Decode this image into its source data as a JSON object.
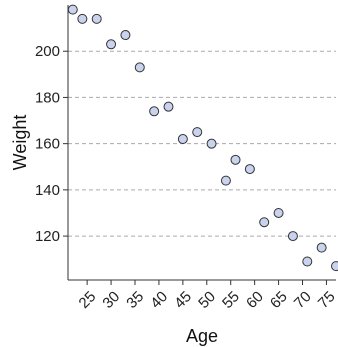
{
  "chart_data": {
    "type": "scatter",
    "title": "",
    "xlabel": "Age",
    "ylabel": "Weight",
    "xlim": [
      21,
      77
    ],
    "ylim": [
      101,
      220
    ],
    "xticks": [
      25,
      30,
      35,
      40,
      45,
      50,
      55,
      60,
      65,
      70,
      75
    ],
    "yticks": [
      120,
      140,
      160,
      180,
      200
    ],
    "grid": "horizontal-dashed",
    "colors": {
      "point_fill": "#c9d3ee",
      "point_stroke": "#333333",
      "grid": "#aaaaaa"
    },
    "points": [
      {
        "x": 22,
        "y": 218
      },
      {
        "x": 24,
        "y": 214
      },
      {
        "x": 27,
        "y": 214
      },
      {
        "x": 30,
        "y": 203
      },
      {
        "x": 33,
        "y": 207
      },
      {
        "x": 36,
        "y": 193
      },
      {
        "x": 39,
        "y": 174
      },
      {
        "x": 42,
        "y": 176
      },
      {
        "x": 45,
        "y": 162
      },
      {
        "x": 48,
        "y": 165
      },
      {
        "x": 51,
        "y": 160
      },
      {
        "x": 54,
        "y": 144
      },
      {
        "x": 56,
        "y": 153
      },
      {
        "x": 59,
        "y": 149
      },
      {
        "x": 62,
        "y": 126
      },
      {
        "x": 65,
        "y": 130
      },
      {
        "x": 68,
        "y": 120
      },
      {
        "x": 71,
        "y": 109
      },
      {
        "x": 74,
        "y": 115
      },
      {
        "x": 77,
        "y": 107
      }
    ]
  }
}
